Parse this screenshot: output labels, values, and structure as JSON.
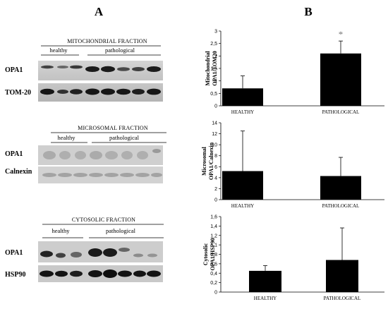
{
  "panel_a": {
    "letter": "A",
    "fractions": [
      {
        "title": "MITOCHONDRIAL FRACTION",
        "groups": [
          "healthy",
          "pathological"
        ],
        "rows": [
          "OPA1",
          "TOM-20"
        ]
      },
      {
        "title": "MICROSOMAL FRACTION",
        "groups": [
          "healthy",
          "pathological"
        ],
        "rows": [
          "OPA1",
          "Calnexin"
        ]
      },
      {
        "title": "CYTOSOLIC FRACTION",
        "groups": [
          "healthy",
          "pathological"
        ],
        "rows": [
          "OPA1",
          "HSP90"
        ]
      }
    ]
  },
  "panel_b": {
    "letter": "B"
  },
  "chart_data": [
    {
      "type": "bar",
      "ylabel_line1": "Mitochondrial",
      "ylabel_line2": "OPA1/TOM20",
      "categories": [
        "HEALTHY",
        "PATHOLOGICAL"
      ],
      "values": [
        0.7,
        2.1
      ],
      "errors": [
        0.5,
        0.5
      ],
      "ylim": [
        0,
        3
      ],
      "yticks": [
        "0",
        "0,5",
        "1",
        "1,5",
        "2",
        "2,5",
        "3"
      ],
      "annotation": "*",
      "annotation_category": "PATHOLOGICAL"
    },
    {
      "type": "bar",
      "ylabel_line1": "Microsomal",
      "ylabel_line2": "OPA1/Calnexin",
      "categories": [
        "HEALTHY",
        "PATHOLOGICAL"
      ],
      "values": [
        5.2,
        4.3
      ],
      "errors": [
        7.3,
        3.4
      ],
      "ylim": [
        0,
        14
      ],
      "yticks": [
        "0",
        "2",
        "4",
        "6",
        "8",
        "10",
        "12",
        "14"
      ]
    },
    {
      "type": "bar",
      "ylabel_line1": "Cytosolic",
      "ylabel_line2": "OPA1/HSP90",
      "categories": [
        "HEALTHY",
        "PATHOLOGICAL"
      ],
      "values": [
        0.45,
        0.68
      ],
      "errors": [
        0.11,
        0.68
      ],
      "ylim": [
        0,
        1.6
      ],
      "yticks": [
        "0",
        "0,2",
        "0,4",
        "0,6",
        "0,8",
        "1",
        "1,2",
        "1,4",
        "1,6"
      ]
    }
  ]
}
